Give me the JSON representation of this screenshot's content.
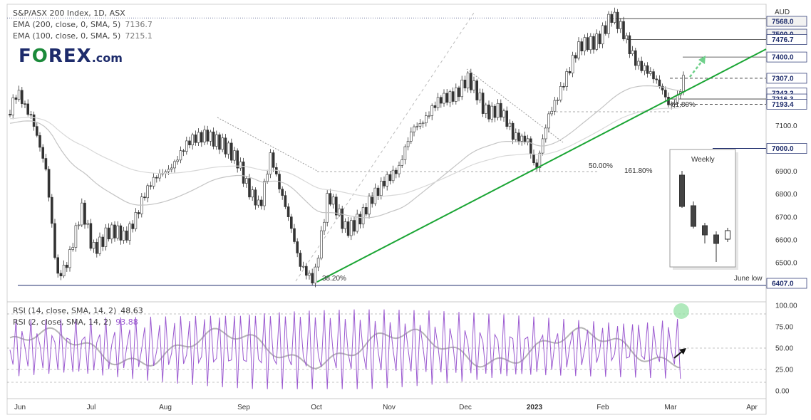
{
  "chart_data": {
    "type": "candlestick",
    "instrument": "S&P/ASX 200 Index, 1D, ASX",
    "currency": "AUD",
    "indicators": [
      {
        "label": "EMA (200, close, 0, SMA, 5)",
        "value": "7136.7",
        "color": "#b0b0b0"
      },
      {
        "label": "EMA (100, close, 0, SMA, 5)",
        "value": "7215.1",
        "color": "#b0b0b0"
      }
    ],
    "months": [
      "Jun",
      "Jul",
      "Aug",
      "Sep",
      "Oct",
      "Nov",
      "Dec",
      "2023",
      "Feb",
      "Mar",
      "Apr"
    ],
    "price_axis_ticks": [
      7100,
      6900,
      6800,
      6700,
      6600,
      6500
    ],
    "price_axis_tick_labels": [
      "7100.0",
      "6900.0",
      "6800.0",
      "6700.0",
      "6600.0",
      "6500.0"
    ],
    "price_labels": [
      {
        "text": "7568.0",
        "value": 7568.0
      },
      {
        "text": "7500.0",
        "value": 7500.0
      },
      {
        "text": "7476.7",
        "value": 7476.7
      },
      {
        "text": "7400.0",
        "value": 7400.0
      },
      {
        "text": "7307.0",
        "value": 7307.0
      },
      {
        "text": "7242.2",
        "value": 7242.2
      },
      {
        "text": "7216.3",
        "value": 7216.3
      },
      {
        "text": "7193.4",
        "value": 7193.4
      },
      {
        "text": "7000.0",
        "value": 7000.0
      },
      {
        "text": "6407.0",
        "value": 6407.0
      }
    ],
    "price_range": [
      6407,
      7568
    ],
    "annotations": [
      "61.80%",
      "50.00%",
      "161.80%",
      "38.20%",
      "June low"
    ],
    "inset": {
      "title": "Weekly"
    },
    "rsi": {
      "series": [
        {
          "label": "RSI (14, close, SMA, 14, 2)",
          "value": "48.63",
          "color": "#b0b0b0"
        },
        {
          "label": "RSI (2, close, SMA, 14, 2)",
          "value": "93.88",
          "color": "#9b59d0"
        }
      ],
      "ticks": [
        "100.00",
        "75.00",
        "50.00",
        "25.00",
        "0.00"
      ],
      "levels": [
        10,
        25,
        50,
        90
      ]
    },
    "colors": {
      "up": "#ffffff",
      "down": "#333333",
      "trendline": "#1aa534",
      "border": "#1d2b6b"
    }
  }
}
